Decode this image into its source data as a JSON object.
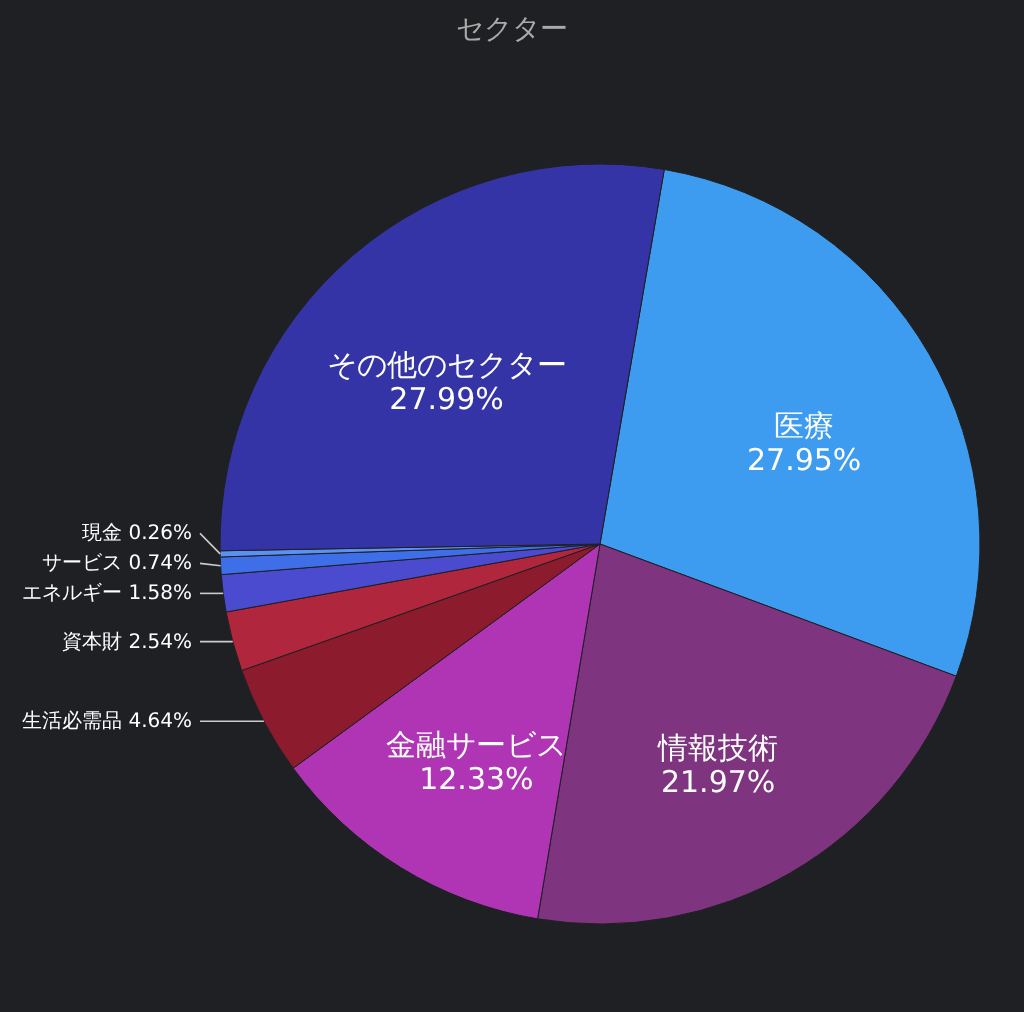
{
  "chart_data": {
    "type": "pie",
    "title": "セクター",
    "categories": [
      "医療",
      "情報技術",
      "金融サービス",
      "生活必需品",
      "資本財",
      "エネルギー",
      "サービス",
      "現金",
      "その他のセクター"
    ],
    "values": [
      27.95,
      21.97,
      12.33,
      4.64,
      2.54,
      1.58,
      0.74,
      0.26,
      27.99
    ],
    "value_labels": [
      "27.95%",
      "21.97%",
      "12.33%",
      "4.64%",
      "2.54%",
      "1.58%",
      "0.74%",
      "0.26%",
      "27.99%"
    ],
    "colors": [
      "#3d9cf0",
      "#7e347f",
      "#b035b5",
      "#8c1b2e",
      "#b0263c",
      "#4b4bd0",
      "#3f6fe8",
      "#5c90f2",
      "#3434a6"
    ],
    "legend": false
  }
}
